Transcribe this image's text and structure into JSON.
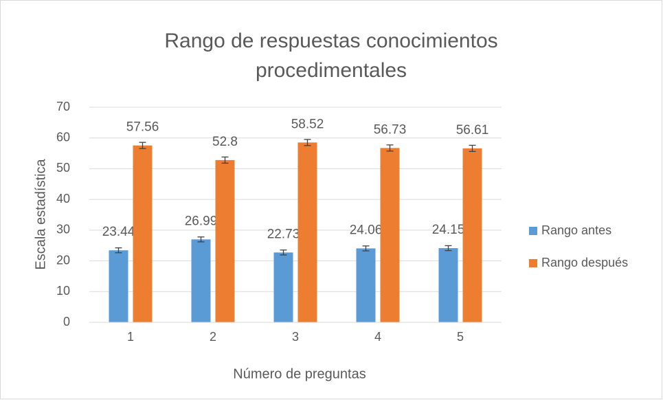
{
  "chart_data": {
    "type": "bar",
    "title": "Rango de respuestas conocimientos procedimentales",
    "x_label": "Número de preguntas",
    "y_label": "Escala estadística",
    "categories": [
      "1",
      "2",
      "3",
      "4",
      "5"
    ],
    "series": [
      {
        "name": "Rango antes",
        "color": "#5b9bd5",
        "values": [
          23.44,
          26.99,
          22.73,
          24.06,
          24.15
        ],
        "errors": [
          0.8,
          0.8,
          0.8,
          0.8,
          0.8
        ]
      },
      {
        "name": "Rango después",
        "color": "#ed7d31",
        "values": [
          57.56,
          52.8,
          58.52,
          56.73,
          56.61
        ],
        "errors": [
          1,
          1,
          1,
          1,
          1
        ]
      }
    ],
    "ylim": [
      0,
      70
    ],
    "yticks": [
      0,
      10,
      20,
      30,
      40,
      50,
      60,
      70
    ],
    "grid": true,
    "legend": "right"
  }
}
